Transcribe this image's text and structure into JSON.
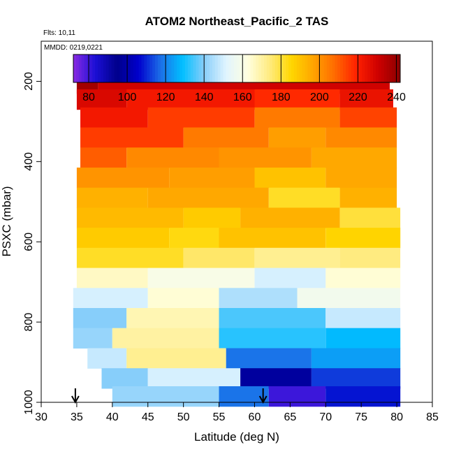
{
  "chart_data": {
    "type": "heatmap",
    "title": "ATOM2 Northeast_Pacific_2 TAS",
    "flights_label": "Flts: 10,11",
    "dates_label": "MMDD: 0219,0221",
    "xlabel": "Latitude (deg N)",
    "ylabel": "PSXC (mbar)",
    "xlim": [
      30,
      85
    ],
    "ylim": [
      1000,
      100
    ],
    "x_ticks": [
      "30",
      "35",
      "40",
      "45",
      "50",
      "55",
      "60",
      "65",
      "70",
      "75",
      "80",
      "85"
    ],
    "y_ticks": [
      "200",
      "400",
      "600",
      "800",
      "1000"
    ],
    "colorbar": {
      "range": [
        72,
        242
      ],
      "ticks": [
        "80",
        "100",
        "120",
        "140",
        "160",
        "180",
        "200",
        "220",
        "240"
      ],
      "colors": [
        "#8a2be2",
        "#1b0fd6",
        "#00008b",
        "#0000cd",
        "#1c6fe8",
        "#00bfff",
        "#87cefa",
        "#e0f4ff",
        "#ffffe0",
        "#ffeb80",
        "#ffd700",
        "#ffa500",
        "#ff6a00",
        "#ff2000",
        "#cd0000",
        "#8b0000"
      ]
    },
    "arrows_latitude": [
      34.8,
      61.2
    ],
    "bands": [
      {
        "p": 205,
        "segments": [
          [
            35.0,
            38.0,
            238
          ],
          [
            38.0,
            79.0,
            230
          ]
        ]
      },
      {
        "p": 245,
        "segments": [
          [
            35.0,
            42.0,
            228
          ],
          [
            42.0,
            60.0,
            222
          ],
          [
            60.0,
            72.0,
            218
          ],
          [
            72.0,
            79.5,
            224
          ]
        ]
      },
      {
        "p": 290,
        "segments": [
          [
            35.5,
            45.0,
            222
          ],
          [
            45.0,
            60.0,
            215
          ],
          [
            60.0,
            72.0,
            205
          ],
          [
            72.0,
            80.0,
            214
          ]
        ]
      },
      {
        "p": 340,
        "segments": [
          [
            35.5,
            50.0,
            215
          ],
          [
            50.0,
            62.0,
            205
          ],
          [
            62.0,
            70.0,
            198
          ],
          [
            70.0,
            80.0,
            202
          ]
        ]
      },
      {
        "p": 390,
        "segments": [
          [
            35.5,
            42.0,
            210
          ],
          [
            42.0,
            55.0,
            202
          ],
          [
            55.0,
            68.0,
            200
          ],
          [
            68.0,
            80.0,
            196
          ]
        ]
      },
      {
        "p": 440,
        "segments": [
          [
            35.0,
            48.0,
            200
          ],
          [
            48.0,
            60.0,
            198
          ],
          [
            60.0,
            70.0,
            190
          ],
          [
            70.0,
            80.0,
            196
          ]
        ]
      },
      {
        "p": 490,
        "segments": [
          [
            35.0,
            45.0,
            194
          ],
          [
            45.0,
            62.0,
            196
          ],
          [
            62.0,
            72.0,
            182
          ],
          [
            72.0,
            80.0,
            194
          ]
        ]
      },
      {
        "p": 540,
        "segments": [
          [
            35.0,
            50.0,
            192
          ],
          [
            50.0,
            58.0,
            188
          ],
          [
            58.0,
            72.0,
            194
          ],
          [
            72.0,
            80.5,
            180
          ]
        ]
      },
      {
        "p": 590,
        "segments": [
          [
            35.0,
            48.0,
            188
          ],
          [
            48.0,
            55.0,
            184
          ],
          [
            55.0,
            70.0,
            190
          ],
          [
            70.0,
            80.5,
            186
          ]
        ]
      },
      {
        "p": 640,
        "segments": [
          [
            35.0,
            50.0,
            182
          ],
          [
            50.0,
            60.0,
            176
          ],
          [
            60.0,
            72.0,
            172
          ],
          [
            72.0,
            80.5,
            174
          ]
        ]
      },
      {
        "p": 690,
        "segments": [
          [
            35.0,
            45.0,
            166
          ],
          [
            45.0,
            60.0,
            160
          ],
          [
            60.0,
            70.0,
            150
          ],
          [
            70.0,
            80.5,
            164
          ]
        ]
      },
      {
        "p": 740,
        "segments": [
          [
            34.5,
            45.0,
            150
          ],
          [
            45.0,
            55.0,
            164
          ],
          [
            55.0,
            66.0,
            145
          ],
          [
            66.0,
            80.5,
            158
          ]
        ]
      },
      {
        "p": 790,
        "segments": [
          [
            34.5,
            42.0,
            140
          ],
          [
            42.0,
            55.0,
            168
          ],
          [
            55.0,
            70.0,
            135
          ],
          [
            70.0,
            80.5,
            148
          ]
        ]
      },
      {
        "p": 840,
        "segments": [
          [
            34.5,
            40.0,
            142
          ],
          [
            40.0,
            55.0,
            170
          ],
          [
            55.0,
            70.0,
            132
          ],
          [
            70.0,
            80.5,
            128
          ]
        ]
      },
      {
        "p": 890,
        "segments": [
          [
            36.5,
            42.0,
            148
          ],
          [
            42.0,
            56.0,
            172
          ],
          [
            56.0,
            68.0,
            118
          ],
          [
            68.0,
            80.5,
            124
          ]
        ]
      },
      {
        "p": 940,
        "segments": [
          [
            38.5,
            45.0,
            140
          ],
          [
            45.0,
            58.0,
            150
          ],
          [
            58.0,
            68.0,
            98
          ],
          [
            68.0,
            80.5,
            112
          ]
        ]
      },
      {
        "p": 985,
        "segments": [
          [
            40.0,
            55.0,
            142
          ],
          [
            55.0,
            62.0,
            118
          ],
          [
            62.0,
            70.0,
            80
          ],
          [
            70.0,
            80.5,
            108
          ]
        ]
      }
    ]
  }
}
